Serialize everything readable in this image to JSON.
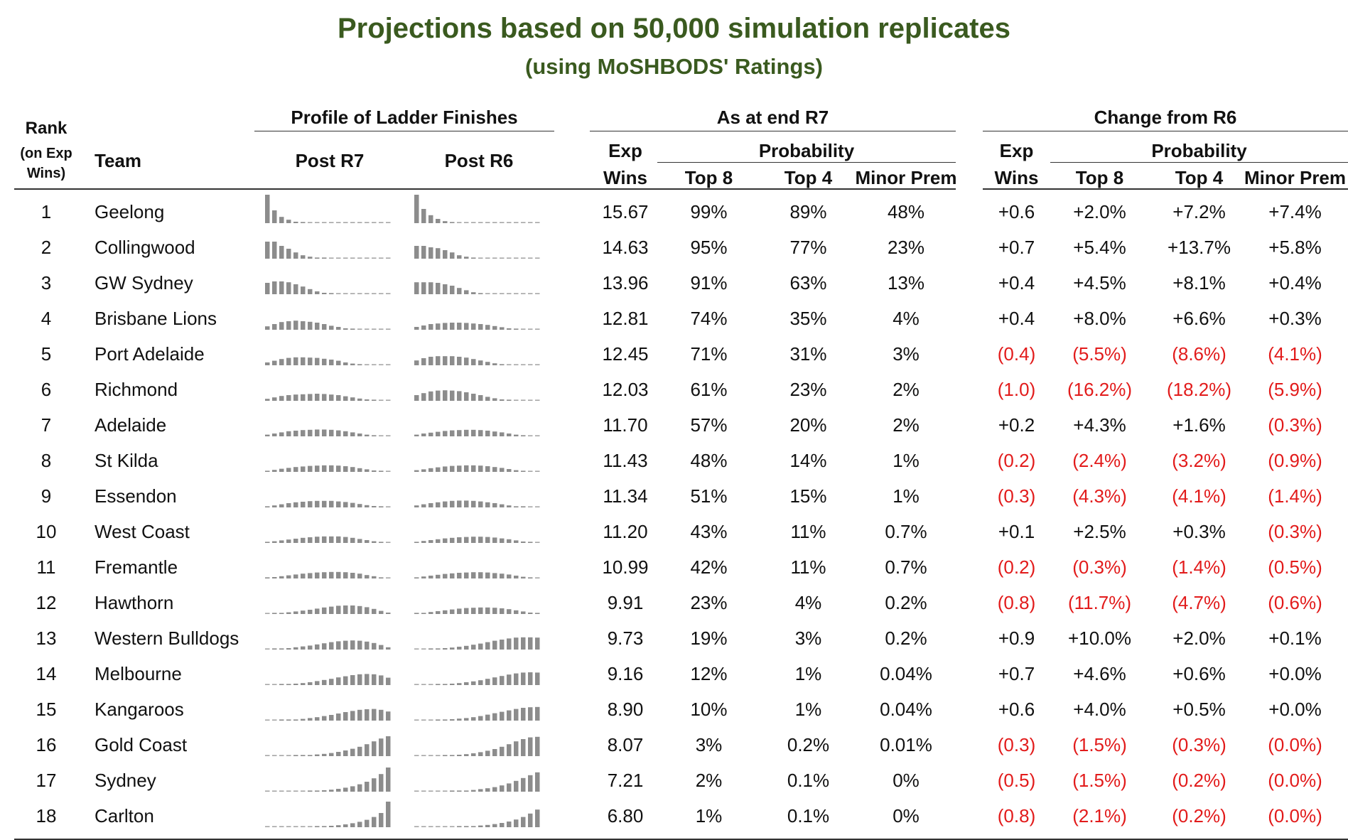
{
  "title": "Projections based on 50,000 simulation replicates",
  "subtitle": "(using MoSHBODS' Ratings)",
  "headers": {
    "rank": [
      "Rank",
      "(on Exp",
      "Wins)"
    ],
    "team": "Team",
    "profile_group": "Profile of Ladder Finishes",
    "post_r7": "Post R7",
    "post_r6": "Post R6",
    "as_at_group": "As at end R7",
    "change_group": "Change from R6",
    "exp": "Exp",
    "wins": "Wins",
    "probability": "Probability",
    "top8": "Top 8",
    "top4": "Top 4",
    "minor_prem": "Minor Prem"
  },
  "colors": {
    "title": "#3a5a1f",
    "negative": "#e21b1b",
    "bar": "#8c8c8c",
    "dash": "#a6a6a6"
  },
  "rows": [
    {
      "rank": "1",
      "team": "Geelong",
      "exp": "15.67",
      "top8": "99%",
      "top4": "89%",
      "prem": "48%",
      "d_exp": "+0.6",
      "d_top8": "+2.0%",
      "d_top4": "+7.2%",
      "d_prem": "+7.4%",
      "p7": [
        1,
        0.45,
        0.22,
        0.12,
        0.05,
        0.02,
        0,
        0,
        0,
        0,
        0,
        0,
        0,
        0,
        0,
        0,
        0,
        0
      ],
      "p6": [
        1,
        0.5,
        0.28,
        0.15,
        0.07,
        0.03,
        0,
        0,
        0,
        0,
        0,
        0,
        0,
        0,
        0,
        0,
        0,
        0
      ]
    },
    {
      "rank": "2",
      "team": "Collingwood",
      "exp": "14.63",
      "top8": "95%",
      "top4": "77%",
      "prem": "23%",
      "d_exp": "+0.7",
      "d_top8": "+5.4%",
      "d_top4": "+13.7%",
      "d_prem": "+5.8%",
      "p7": [
        0.6,
        0.6,
        0.45,
        0.35,
        0.22,
        0.12,
        0.07,
        0.04,
        0.02,
        0,
        0,
        0,
        0,
        0,
        0,
        0,
        0,
        0
      ],
      "p6": [
        0.45,
        0.45,
        0.4,
        0.37,
        0.3,
        0.22,
        0.12,
        0.07,
        0.03,
        0,
        0,
        0,
        0,
        0,
        0,
        0,
        0,
        0
      ]
    },
    {
      "rank": "3",
      "team": "GW Sydney",
      "exp": "13.96",
      "top8": "91%",
      "top4": "63%",
      "prem": "13%",
      "d_exp": "+0.4",
      "d_top8": "+4.5%",
      "d_top4": "+8.1%",
      "d_prem": "+0.4%",
      "p7": [
        0.4,
        0.45,
        0.45,
        0.42,
        0.35,
        0.27,
        0.18,
        0.1,
        0.05,
        0.03,
        0,
        0,
        0,
        0,
        0,
        0,
        0,
        0
      ],
      "p6": [
        0.42,
        0.42,
        0.42,
        0.4,
        0.35,
        0.3,
        0.22,
        0.14,
        0.07,
        0.03,
        0,
        0,
        0,
        0,
        0,
        0,
        0,
        0
      ]
    },
    {
      "rank": "4",
      "team": "Brisbane Lions",
      "exp": "12.81",
      "top8": "74%",
      "top4": "35%",
      "prem": "4%",
      "d_exp": "+0.4",
      "d_top8": "+8.0%",
      "d_top4": "+6.6%",
      "d_prem": "+0.3%",
      "p7": [
        0.12,
        0.2,
        0.27,
        0.3,
        0.32,
        0.3,
        0.28,
        0.25,
        0.2,
        0.14,
        0.1,
        0.05,
        0.03,
        0,
        0,
        0,
        0,
        0
      ],
      "p6": [
        0.1,
        0.15,
        0.2,
        0.22,
        0.24,
        0.25,
        0.25,
        0.24,
        0.22,
        0.2,
        0.17,
        0.13,
        0.09,
        0.05,
        0.03,
        0,
        0,
        0
      ]
    },
    {
      "rank": "5",
      "team": "Port Adelaide",
      "exp": "12.45",
      "top8": "71%",
      "top4": "31%",
      "prem": "3%",
      "d_exp": "(0.4)",
      "d_top8": "(5.5%)",
      "d_top4": "(8.6%)",
      "d_prem": "(4.1%)",
      "p7": [
        0.1,
        0.16,
        0.22,
        0.26,
        0.28,
        0.28,
        0.27,
        0.26,
        0.23,
        0.2,
        0.16,
        0.1,
        0.06,
        0.03,
        0,
        0,
        0,
        0
      ],
      "p6": [
        0.17,
        0.25,
        0.3,
        0.32,
        0.32,
        0.32,
        0.3,
        0.27,
        0.22,
        0.17,
        0.12,
        0.07,
        0.04,
        0,
        0,
        0,
        0,
        0
      ]
    },
    {
      "rank": "6",
      "team": "Richmond",
      "exp": "12.03",
      "top8": "61%",
      "top4": "23%",
      "prem": "2%",
      "d_exp": "(1.0)",
      "d_top8": "(16.2%)",
      "d_top4": "(18.2%)",
      "d_prem": "(5.9%)",
      "p7": [
        0.07,
        0.12,
        0.17,
        0.2,
        0.22,
        0.23,
        0.24,
        0.25,
        0.24,
        0.22,
        0.2,
        0.16,
        0.12,
        0.08,
        0.05,
        0.03,
        0,
        0
      ],
      "p6": [
        0.2,
        0.27,
        0.33,
        0.36,
        0.37,
        0.36,
        0.34,
        0.3,
        0.25,
        0.2,
        0.14,
        0.09,
        0.05,
        0.03,
        0,
        0,
        0,
        0
      ]
    },
    {
      "rank": "7",
      "team": "Adelaide",
      "exp": "11.70",
      "top8": "57%",
      "top4": "20%",
      "prem": "2%",
      "d_exp": "+0.2",
      "d_top8": "+4.3%",
      "d_top4": "+1.6%",
      "d_prem": "(0.3%)",
      "p7": [
        0.06,
        0.1,
        0.14,
        0.18,
        0.2,
        0.22,
        0.23,
        0.24,
        0.24,
        0.23,
        0.21,
        0.18,
        0.14,
        0.1,
        0.06,
        0.03,
        0,
        0
      ],
      "p6": [
        0.06,
        0.1,
        0.13,
        0.16,
        0.19,
        0.21,
        0.22,
        0.23,
        0.23,
        0.22,
        0.2,
        0.17,
        0.14,
        0.1,
        0.06,
        0.03,
        0,
        0
      ]
    },
    {
      "rank": "8",
      "team": "St Kilda",
      "exp": "11.43",
      "top8": "48%",
      "top4": "14%",
      "prem": "1%",
      "d_exp": "(0.2)",
      "d_top8": "(2.4%)",
      "d_top4": "(3.2%)",
      "d_prem": "(0.9%)",
      "p7": [
        0.04,
        0.07,
        0.11,
        0.14,
        0.17,
        0.19,
        0.21,
        0.22,
        0.23,
        0.23,
        0.22,
        0.2,
        0.17,
        0.13,
        0.09,
        0.05,
        0.03,
        0
      ],
      "p6": [
        0.06,
        0.09,
        0.13,
        0.16,
        0.19,
        0.21,
        0.22,
        0.23,
        0.23,
        0.22,
        0.2,
        0.17,
        0.14,
        0.1,
        0.06,
        0.03,
        0,
        0
      ]
    },
    {
      "rank": "9",
      "team": "Essendon",
      "exp": "11.34",
      "top8": "51%",
      "top4": "15%",
      "prem": "1%",
      "d_exp": "(0.3)",
      "d_top8": "(4.3%)",
      "d_top4": "(4.1%)",
      "d_prem": "(1.4%)",
      "p7": [
        0.04,
        0.07,
        0.11,
        0.15,
        0.18,
        0.2,
        0.22,
        0.23,
        0.23,
        0.23,
        0.21,
        0.19,
        0.16,
        0.12,
        0.08,
        0.05,
        0.02,
        0
      ],
      "p6": [
        0.07,
        0.11,
        0.15,
        0.18,
        0.21,
        0.23,
        0.24,
        0.24,
        0.23,
        0.21,
        0.18,
        0.15,
        0.11,
        0.07,
        0.04,
        0.02,
        0,
        0
      ]
    },
    {
      "rank": "10",
      "team": "West Coast",
      "exp": "11.20",
      "top8": "43%",
      "top4": "11%",
      "prem": "0.7%",
      "d_exp": "+0.1",
      "d_top8": "+2.5%",
      "d_top4": "+0.3%",
      "d_prem": "(0.3%)",
      "p7": [
        0.03,
        0.06,
        0.09,
        0.12,
        0.15,
        0.18,
        0.2,
        0.22,
        0.23,
        0.23,
        0.23,
        0.21,
        0.18,
        0.14,
        0.1,
        0.06,
        0.03,
        0
      ],
      "p6": [
        0.04,
        0.07,
        0.1,
        0.13,
        0.16,
        0.18,
        0.2,
        0.21,
        0.22,
        0.22,
        0.21,
        0.19,
        0.16,
        0.13,
        0.09,
        0.05,
        0.03,
        0
      ]
    },
    {
      "rank": "11",
      "team": "Fremantle",
      "exp": "10.99",
      "top8": "42%",
      "top4": "11%",
      "prem": "0.7%",
      "d_exp": "(0.2)",
      "d_top8": "(0.3%)",
      "d_top4": "(1.4%)",
      "d_prem": "(0.5%)",
      "p7": [
        0.03,
        0.05,
        0.08,
        0.11,
        0.14,
        0.17,
        0.19,
        0.21,
        0.22,
        0.23,
        0.23,
        0.22,
        0.2,
        0.17,
        0.12,
        0.08,
        0.04,
        0
      ],
      "p6": [
        0.04,
        0.07,
        0.1,
        0.13,
        0.16,
        0.18,
        0.2,
        0.21,
        0.22,
        0.22,
        0.21,
        0.19,
        0.17,
        0.14,
        0.1,
        0.06,
        0.03,
        0
      ]
    },
    {
      "rank": "12",
      "team": "Hawthorn",
      "exp": "9.91",
      "top8": "23%",
      "top4": "4%",
      "prem": "0.2%",
      "d_exp": "(0.8)",
      "d_top8": "(11.7%)",
      "d_top4": "(4.7%)",
      "d_prem": "(0.6%)",
      "p7": [
        0,
        0.02,
        0.04,
        0.06,
        0.09,
        0.12,
        0.15,
        0.19,
        0.23,
        0.26,
        0.29,
        0.3,
        0.3,
        0.28,
        0.24,
        0.18,
        0.11,
        0.05
      ],
      "p6": [
        0.02,
        0.04,
        0.07,
        0.1,
        0.13,
        0.16,
        0.19,
        0.21,
        0.22,
        0.23,
        0.23,
        0.22,
        0.2,
        0.17,
        0.13,
        0.09,
        0.05,
        0.02
      ]
    },
    {
      "rank": "13",
      "team": "Western Bulldogs",
      "exp": "9.73",
      "top8": "19%",
      "top4": "3%",
      "prem": "0.2%",
      "d_exp": "+0.9",
      "d_top8": "+10.0%",
      "d_top4": "+2.0%",
      "d_prem": "+0.1%",
      "p7": [
        0,
        0.02,
        0.03,
        0.05,
        0.08,
        0.11,
        0.14,
        0.18,
        0.22,
        0.26,
        0.29,
        0.31,
        0.32,
        0.31,
        0.28,
        0.23,
        0.16,
        0.08
      ],
      "p6": [
        0,
        0,
        0.02,
        0.03,
        0.05,
        0.07,
        0.1,
        0.13,
        0.17,
        0.21,
        0.26,
        0.31,
        0.35,
        0.39,
        0.42,
        0.43,
        0.43,
        0.42
      ]
    },
    {
      "rank": "14",
      "team": "Melbourne",
      "exp": "9.16",
      "top8": "12%",
      "top4": "1%",
      "prem": "0.04%",
      "d_exp": "+0.7",
      "d_top8": "+4.6%",
      "d_top4": "+0.6%",
      "d_prem": "+0.0%",
      "p7": [
        0,
        0,
        0.02,
        0.03,
        0.05,
        0.07,
        0.1,
        0.14,
        0.18,
        0.22,
        0.27,
        0.31,
        0.35,
        0.38,
        0.39,
        0.38,
        0.34,
        0.26
      ],
      "p6": [
        0,
        0,
        0,
        0.02,
        0.03,
        0.05,
        0.07,
        0.1,
        0.13,
        0.17,
        0.22,
        0.27,
        0.32,
        0.37,
        0.41,
        0.44,
        0.45,
        0.44
      ]
    },
    {
      "rank": "15",
      "team": "Kangaroos",
      "exp": "8.90",
      "top8": "10%",
      "top4": "1%",
      "prem": "0.04%",
      "d_exp": "+0.6",
      "d_top8": "+4.0%",
      "d_top4": "+0.5%",
      "d_prem": "+0.0%",
      "p7": [
        0,
        0,
        0.02,
        0.03,
        0.04,
        0.06,
        0.09,
        0.12,
        0.16,
        0.2,
        0.25,
        0.3,
        0.34,
        0.38,
        0.4,
        0.41,
        0.38,
        0.32
      ],
      "p6": [
        0,
        0,
        0,
        0.02,
        0.03,
        0.05,
        0.07,
        0.09,
        0.12,
        0.16,
        0.21,
        0.26,
        0.31,
        0.36,
        0.41,
        0.45,
        0.47,
        0.48
      ]
    },
    {
      "rank": "16",
      "team": "Gold Coast",
      "exp": "8.07",
      "top8": "3%",
      "top4": "0.2%",
      "prem": "0.01%",
      "d_exp": "(0.3)",
      "d_top8": "(1.5%)",
      "d_top4": "(0.3%)",
      "d_prem": "(0.0%)",
      "p7": [
        0,
        0,
        0,
        0,
        0.02,
        0.03,
        0.04,
        0.06,
        0.08,
        0.11,
        0.15,
        0.2,
        0.26,
        0.33,
        0.42,
        0.52,
        0.62,
        0.7
      ],
      "p6": [
        0,
        0,
        0,
        0,
        0.02,
        0.03,
        0.05,
        0.07,
        0.1,
        0.14,
        0.19,
        0.25,
        0.33,
        0.42,
        0.52,
        0.6,
        0.66,
        0.68
      ]
    },
    {
      "rank": "17",
      "team": "Sydney",
      "exp": "7.21",
      "top8": "2%",
      "top4": "0.1%",
      "prem": "0%",
      "d_exp": "(0.5)",
      "d_top8": "(1.5%)",
      "d_top4": "(0.2%)",
      "d_prem": "(0.0%)",
      "p7": [
        0,
        0,
        0,
        0,
        0,
        0,
        0.02,
        0.03,
        0.05,
        0.07,
        0.1,
        0.14,
        0.19,
        0.26,
        0.35,
        0.47,
        0.62,
        0.85
      ],
      "p6": [
        0,
        0,
        0,
        0,
        0,
        0.02,
        0.03,
        0.04,
        0.06,
        0.09,
        0.12,
        0.16,
        0.22,
        0.29,
        0.38,
        0.48,
        0.58,
        0.68
      ]
    },
    {
      "rank": "18",
      "team": "Carlton",
      "exp": "6.80",
      "top8": "1%",
      "top4": "0.1%",
      "prem": "0%",
      "d_exp": "(0.8)",
      "d_top8": "(2.1%)",
      "d_top4": "(0.2%)",
      "d_prem": "(0.0%)",
      "p7": [
        0,
        0,
        0,
        0,
        0,
        0,
        0,
        0.02,
        0.03,
        0.05,
        0.07,
        0.1,
        0.14,
        0.19,
        0.26,
        0.36,
        0.5,
        0.9
      ],
      "p6": [
        0,
        0,
        0,
        0,
        0,
        0,
        0.02,
        0.03,
        0.04,
        0.06,
        0.08,
        0.11,
        0.15,
        0.2,
        0.27,
        0.36,
        0.48,
        0.62
      ]
    }
  ]
}
